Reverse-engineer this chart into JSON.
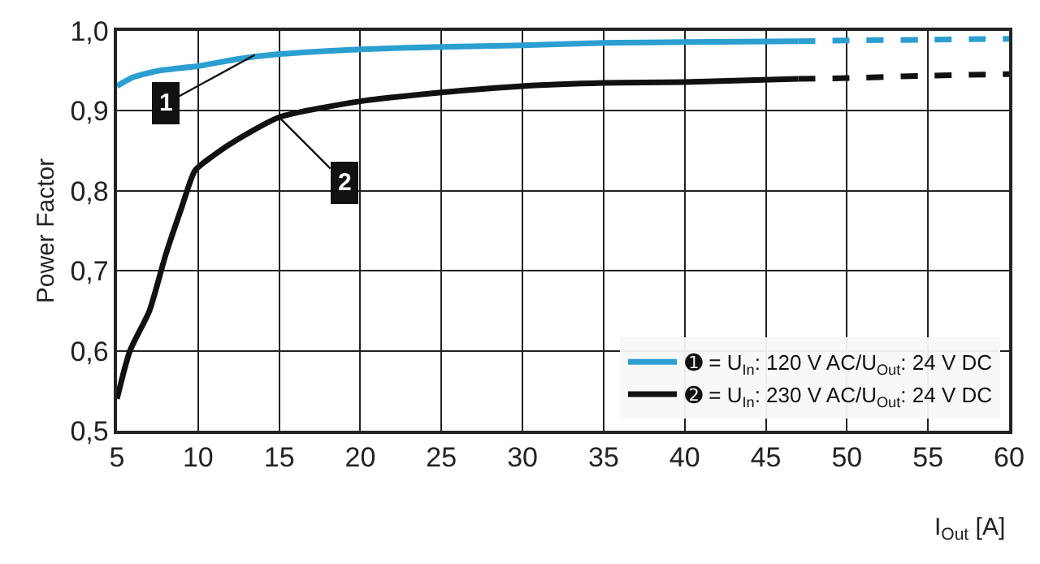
{
  "chart_data": {
    "type": "line",
    "xlabel": "I$_{Out}$ [A]",
    "ylabel": "Power Factor",
    "xlim": [
      5,
      60
    ],
    "xticks": [
      5,
      10,
      15,
      20,
      25,
      30,
      35,
      40,
      45,
      50,
      55,
      60
    ],
    "ylim": [
      0.5,
      1.0
    ],
    "yticks": [
      {
        "value": 0.5,
        "label": "0,5"
      },
      {
        "value": 0.6,
        "label": "0,6"
      },
      {
        "value": 0.7,
        "label": "0,7"
      },
      {
        "value": 0.8,
        "label": "0,8"
      },
      {
        "value": 0.9,
        "label": "0,9"
      },
      {
        "value": 1.0,
        "label": "1,0"
      }
    ],
    "grid": true,
    "legend": "bottom right",
    "marker": "none",
    "line_style": "solid",
    "series": [
      {
        "name": "➊ = U$_{In}$: 120 V AC/U$_{Out}$: 24 V DC",
        "color": "#2a9fd0",
        "x": [
          5,
          6,
          7.5,
          10,
          12.5,
          15,
          20,
          25,
          30,
          35,
          40,
          47
        ],
        "values": [
          0.931,
          0.942,
          0.95,
          0.956,
          0.965,
          0.971,
          0.977,
          0.98,
          0.982,
          0.985,
          0.986,
          0.987
        ]
      },
      {
        "color": "#2a9fd0",
        "line_style": "dashed",
        "x": [
          47,
          50,
          55,
          60
        ],
        "values": [
          0.987,
          0.988,
          0.989,
          0.99
        ]
      },
      {
        "name": "➋ = U$_{In}$: 230 V AC/U$_{Out}$: 24 V DC",
        "color": "#111111",
        "x": [
          5,
          5.8,
          7,
          8,
          9,
          9.8,
          11,
          12.5,
          15,
          20,
          25,
          30,
          35,
          40,
          47
        ],
        "values": [
          0.54,
          0.6,
          0.65,
          0.72,
          0.78,
          0.825,
          0.845,
          0.865,
          0.892,
          0.912,
          0.923,
          0.931,
          0.935,
          0.936,
          0.94
        ]
      },
      {
        "color": "#111111",
        "line_style": "dashed",
        "x": [
          47,
          50,
          55,
          60
        ],
        "values": [
          0.94,
          0.941,
          0.944,
          0.946
        ]
      }
    ],
    "annotations": [
      {
        "text": "1",
        "x": 13.5,
        "y": 0.97
      },
      {
        "text": "2",
        "x": 15,
        "y": 0.892
      }
    ]
  }
}
